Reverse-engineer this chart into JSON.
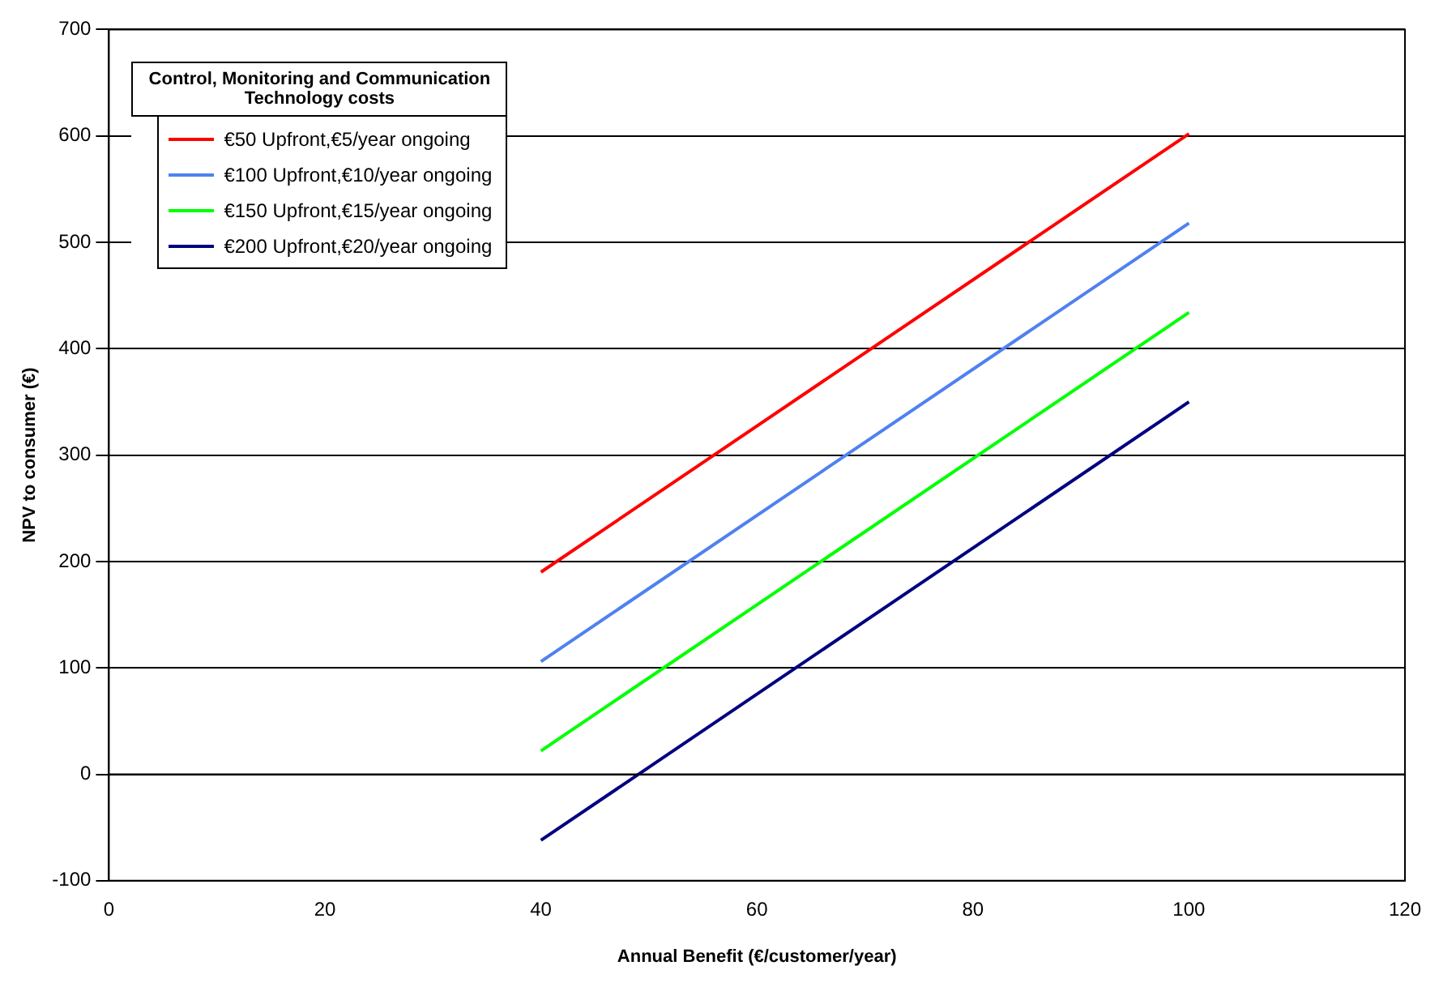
{
  "chart_data": {
    "type": "line",
    "xlabel": "Annual Benefit (€/customer/year)",
    "ylabel": "NPV to consumer (€)",
    "legend_title": "Control, Monitoring and Communication Technology costs",
    "x": [
      40,
      100
    ],
    "series": [
      {
        "name": "€50 Upfront,€5/year ongoing",
        "color": "#ff0000",
        "values": [
          190,
          602
        ]
      },
      {
        "name": "€100 Upfront,€10/year ongoing",
        "color": "#4f81f0",
        "values": [
          106,
          518
        ]
      },
      {
        "name": "€150 Upfront,€15/year ongoing",
        "color": "#00ff00",
        "values": [
          22,
          434
        ]
      },
      {
        "name": "€200 Upfront,€20/year ongoing",
        "color": "#000080",
        "values": [
          -62,
          350
        ]
      }
    ],
    "xlim": [
      0,
      120
    ],
    "xticks": [
      0,
      20,
      40,
      60,
      80,
      100,
      120
    ],
    "ylim": [
      -100,
      700
    ],
    "yticks": [
      -100,
      0,
      100,
      200,
      300,
      400,
      500,
      600,
      700
    ],
    "grid": "y",
    "legend": "top left",
    "marker": "none",
    "line_style": "solid"
  }
}
